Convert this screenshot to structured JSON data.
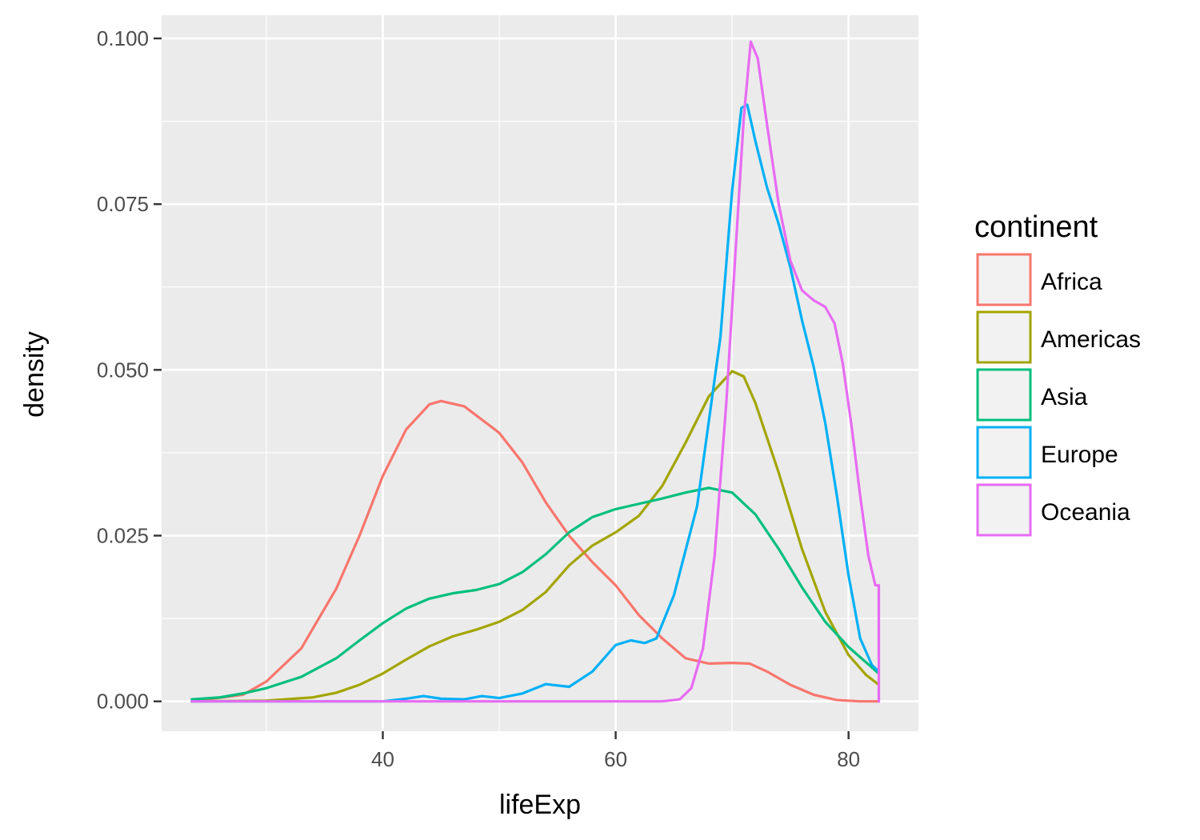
{
  "chart_data": {
    "type": "line",
    "title": "",
    "xlabel": "lifeExp",
    "ylabel": "density",
    "xlim": [
      21,
      86
    ],
    "ylim": [
      -0.0045,
      0.1035
    ],
    "x_ticks": [
      40,
      60,
      80
    ],
    "x_tick_labels": [
      "40",
      "60",
      "80"
    ],
    "y_ticks": [
      0,
      0.025,
      0.05,
      0.075,
      0.1
    ],
    "y_tick_labels": [
      "0.000",
      "0.025",
      "0.050",
      "0.075",
      "0.100"
    ],
    "grid": true,
    "legend": {
      "title": "continent",
      "position": "right"
    },
    "series": [
      {
        "name": "Africa",
        "color": "#F8766D",
        "points": [
          [
            23.6,
            0.0
          ],
          [
            28,
            0.001
          ],
          [
            30,
            0.003
          ],
          [
            33,
            0.008
          ],
          [
            36,
            0.017
          ],
          [
            38,
            0.025
          ],
          [
            40,
            0.034
          ],
          [
            42,
            0.041
          ],
          [
            44,
            0.0448
          ],
          [
            45,
            0.0453
          ],
          [
            47,
            0.0445
          ],
          [
            50,
            0.0405
          ],
          [
            52,
            0.036
          ],
          [
            54,
            0.03
          ],
          [
            56,
            0.025
          ],
          [
            58,
            0.021
          ],
          [
            60,
            0.0175
          ],
          [
            62,
            0.013
          ],
          [
            64,
            0.0095
          ],
          [
            66,
            0.0065
          ],
          [
            68,
            0.0057
          ],
          [
            70,
            0.0058
          ],
          [
            71.5,
            0.0057
          ],
          [
            73,
            0.0045
          ],
          [
            75,
            0.0025
          ],
          [
            77,
            0.001
          ],
          [
            79,
            0.0002
          ],
          [
            81,
            0.0
          ],
          [
            82.6,
            0.0
          ]
        ]
      },
      {
        "name": "Americas",
        "color": "#A3A500",
        "points": [
          [
            23.6,
            0.0
          ],
          [
            30,
            0.0001
          ],
          [
            34,
            0.0006
          ],
          [
            36,
            0.0013
          ],
          [
            38,
            0.0025
          ],
          [
            40,
            0.0042
          ],
          [
            42,
            0.0063
          ],
          [
            44,
            0.0083
          ],
          [
            46,
            0.0098
          ],
          [
            48,
            0.0108
          ],
          [
            50,
            0.012
          ],
          [
            52,
            0.0138
          ],
          [
            54,
            0.0165
          ],
          [
            56,
            0.0205
          ],
          [
            58,
            0.0235
          ],
          [
            60,
            0.0255
          ],
          [
            62,
            0.028
          ],
          [
            64,
            0.0325
          ],
          [
            66,
            0.039
          ],
          [
            68,
            0.046
          ],
          [
            70,
            0.0498
          ],
          [
            71,
            0.049
          ],
          [
            72,
            0.045
          ],
          [
            74,
            0.0345
          ],
          [
            76,
            0.023
          ],
          [
            78,
            0.0135
          ],
          [
            80,
            0.007
          ],
          [
            81.5,
            0.004
          ],
          [
            82.6,
            0.0025
          ]
        ]
      },
      {
        "name": "Asia",
        "color": "#00BF7D",
        "points": [
          [
            23.6,
            0.0003
          ],
          [
            26,
            0.0006
          ],
          [
            28,
            0.0012
          ],
          [
            30,
            0.002
          ],
          [
            33,
            0.0037
          ],
          [
            36,
            0.0065
          ],
          [
            38,
            0.0092
          ],
          [
            40,
            0.0118
          ],
          [
            42,
            0.014
          ],
          [
            44,
            0.0155
          ],
          [
            46,
            0.0163
          ],
          [
            48,
            0.0168
          ],
          [
            50,
            0.0177
          ],
          [
            52,
            0.0195
          ],
          [
            54,
            0.0222
          ],
          [
            56,
            0.0255
          ],
          [
            58,
            0.0278
          ],
          [
            60,
            0.029
          ],
          [
            62,
            0.0298
          ],
          [
            64,
            0.0306
          ],
          [
            66,
            0.0315
          ],
          [
            68,
            0.0322
          ],
          [
            70,
            0.0315
          ],
          [
            72,
            0.0282
          ],
          [
            74,
            0.023
          ],
          [
            76,
            0.0172
          ],
          [
            78,
            0.012
          ],
          [
            80,
            0.0082
          ],
          [
            82.6,
            0.0042
          ]
        ]
      },
      {
        "name": "Europe",
        "color": "#00B0F6",
        "points": [
          [
            23.6,
            0.0
          ],
          [
            40,
            0.0
          ],
          [
            42,
            0.0004
          ],
          [
            43.5,
            0.0008
          ],
          [
            45,
            0.0004
          ],
          [
            47,
            0.0003
          ],
          [
            48.5,
            0.0008
          ],
          [
            50,
            0.0005
          ],
          [
            52,
            0.0012
          ],
          [
            54,
            0.0026
          ],
          [
            56,
            0.0022
          ],
          [
            58,
            0.0045
          ],
          [
            60,
            0.0085
          ],
          [
            61.3,
            0.0092
          ],
          [
            62.5,
            0.0088
          ],
          [
            63.5,
            0.0095
          ],
          [
            65,
            0.016
          ],
          [
            67,
            0.0295
          ],
          [
            69,
            0.055
          ],
          [
            70,
            0.077
          ],
          [
            70.8,
            0.0895
          ],
          [
            71.3,
            0.09
          ],
          [
            72,
            0.0845
          ],
          [
            73,
            0.0775
          ],
          [
            74,
            0.072
          ],
          [
            75,
            0.0655
          ],
          [
            76,
            0.0575
          ],
          [
            77,
            0.0505
          ],
          [
            78,
            0.042
          ],
          [
            79,
            0.031
          ],
          [
            80,
            0.019
          ],
          [
            81,
            0.0095
          ],
          [
            82,
            0.0055
          ],
          [
            82.6,
            0.0045
          ]
        ]
      },
      {
        "name": "Oceania",
        "color": "#E76BF3",
        "points": [
          [
            23.6,
            0.0
          ],
          [
            64,
            0.0
          ],
          [
            65.5,
            0.0003
          ],
          [
            66.5,
            0.002
          ],
          [
            67.5,
            0.008
          ],
          [
            68.5,
            0.022
          ],
          [
            69.5,
            0.045
          ],
          [
            70.3,
            0.068
          ],
          [
            71,
            0.088
          ],
          [
            71.6,
            0.0995
          ],
          [
            72.2,
            0.097
          ],
          [
            73,
            0.087
          ],
          [
            74,
            0.075
          ],
          [
            75,
            0.0665
          ],
          [
            76,
            0.062
          ],
          [
            77,
            0.0605
          ],
          [
            78,
            0.0595
          ],
          [
            78.8,
            0.057
          ],
          [
            79.5,
            0.051
          ],
          [
            80.3,
            0.041
          ],
          [
            81,
            0.031
          ],
          [
            81.7,
            0.022
          ],
          [
            82.3,
            0.0175
          ],
          [
            82.6,
            0.0175
          ],
          [
            82.6,
            0.0
          ]
        ]
      }
    ]
  }
}
